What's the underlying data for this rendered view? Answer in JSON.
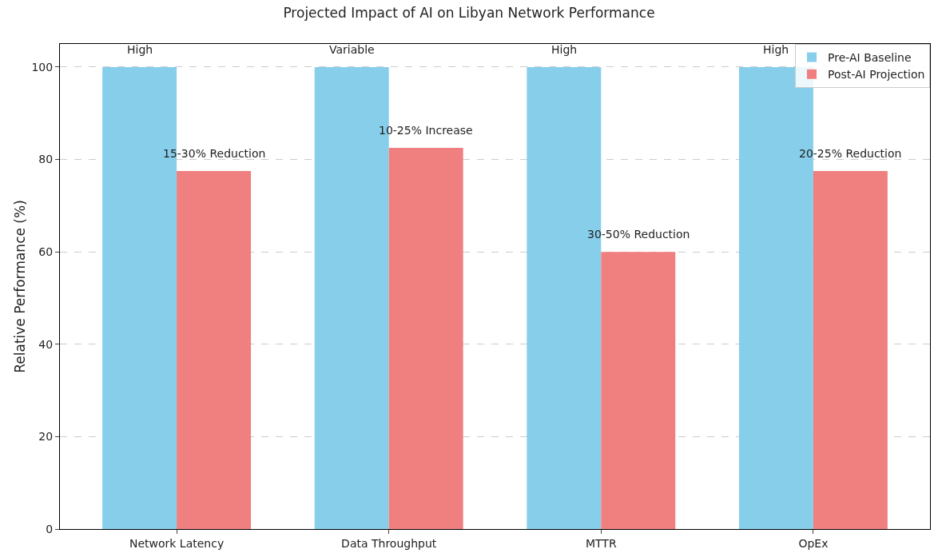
{
  "chart_data": {
    "type": "bar",
    "title": "Projected Impact of AI on Libyan Network Performance",
    "ylabel": "Relative Performance (%)",
    "categories": [
      "Network Latency",
      "Data Throughput",
      "MTTR",
      "OpEx"
    ],
    "series": [
      {
        "name": "Pre-AI Baseline",
        "color": "#87ceeb",
        "values": [
          100,
          100,
          100,
          100
        ]
      },
      {
        "name": "Post-AI Projection",
        "color": "#f08080",
        "values": [
          77.5,
          82.5,
          60,
          77.5
        ]
      }
    ],
    "annotations": [
      {
        "text": "High",
        "x": "Network Latency",
        "y": 100
      },
      {
        "text": "Variable",
        "x": "Data Throughput",
        "y": 100
      },
      {
        "text": "High",
        "x": "MTTR",
        "y": 100
      },
      {
        "text": "High",
        "x": "OpEx",
        "y": 100
      },
      {
        "text": "15-30% Reduction",
        "x": "Network Latency",
        "y": 77.5
      },
      {
        "text": "10-25% Increase",
        "x": "Data Throughput",
        "y": 82.5
      },
      {
        "text": "30-50% Reduction",
        "x": "MTTR",
        "y": 60
      },
      {
        "text": "20-25% Reduction",
        "x": "OpEx",
        "y": 77.5
      }
    ],
    "ylim": [
      0,
      105
    ],
    "yticks": [
      0,
      20,
      40,
      60,
      80,
      100
    ],
    "grid": "y",
    "legend": "top right"
  }
}
